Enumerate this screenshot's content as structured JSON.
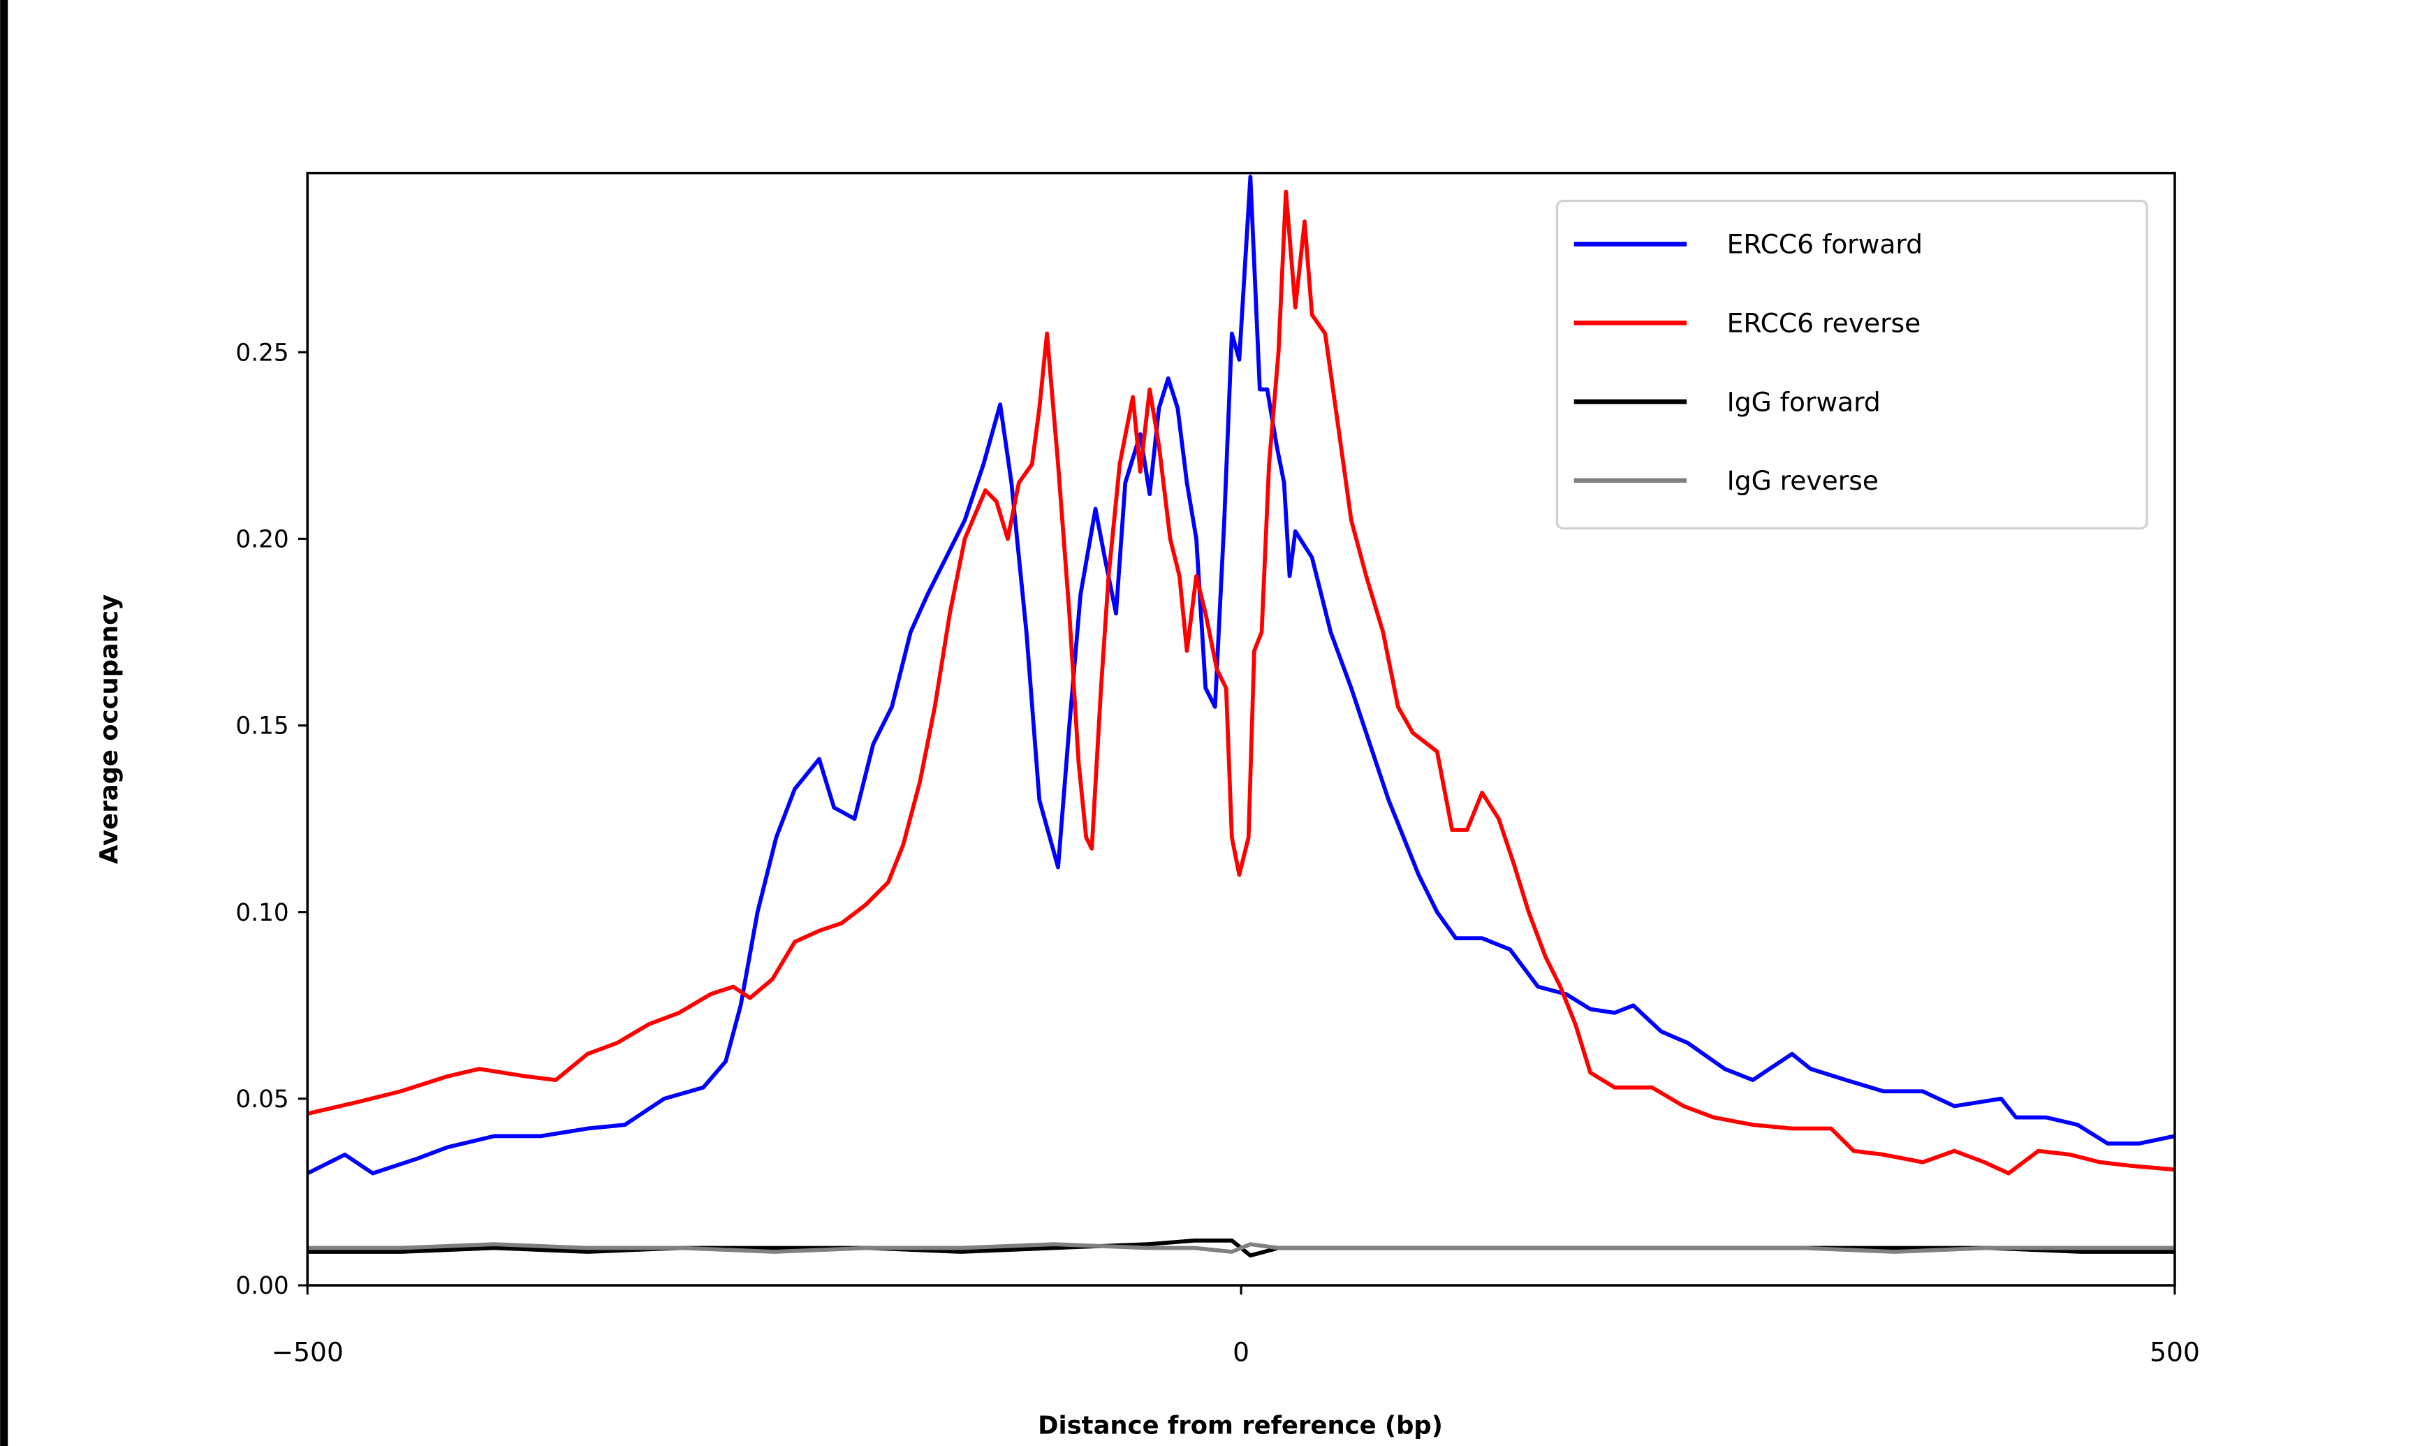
{
  "chart_data": {
    "type": "line",
    "title": "",
    "xlabel": "Distance from reference (bp)",
    "ylabel": "Average occupancy",
    "xlim": [
      -500,
      500
    ],
    "ylim": [
      0,
      0.298
    ],
    "xticks": [
      -500,
      0,
      500
    ],
    "xtick_labels": [
      "−500",
      "0",
      "500"
    ],
    "yticks": [
      0,
      0.05,
      0.1,
      0.15,
      0.2,
      0.25
    ],
    "ytick_labels": [
      "0.00",
      "0.05",
      "0.10",
      "0.15",
      "0.20",
      "0.25"
    ],
    "grid": false,
    "legend_position": "top-right",
    "series": [
      {
        "name": "ERCC6 forward",
        "color": "#0000ff",
        "x": [
          -500,
          -480,
          -465,
          -441,
          -425,
          -400,
          -375,
          -350,
          -330,
          -309,
          -288,
          -276,
          -268,
          -259,
          -249,
          -239,
          -226,
          -218,
          -207,
          -197,
          -187,
          -177,
          -168,
          -158,
          -148,
          -138,
          -129,
          -123,
          -115,
          -108,
          -98,
          -92,
          -86,
          -78,
          -73,
          -67,
          -62,
          -54,
          -49,
          -44,
          -39,
          -34,
          -29,
          -24,
          -19,
          -14,
          -9,
          -5,
          -1,
          5,
          10,
          14,
          19,
          23,
          26,
          29,
          38,
          48,
          59,
          69,
          79,
          95,
          105,
          115,
          129,
          144,
          159,
          174,
          187,
          200,
          210,
          225,
          239,
          259,
          274,
          295,
          305,
          324,
          344,
          365,
          382,
          407,
          415,
          431,
          448,
          464,
          481,
          500
        ],
        "y": [
          0.03,
          0.035,
          0.03,
          0.034,
          0.037,
          0.04,
          0.04,
          0.042,
          0.043,
          0.05,
          0.053,
          0.06,
          0.075,
          0.1,
          0.12,
          0.133,
          0.141,
          0.128,
          0.125,
          0.145,
          0.155,
          0.175,
          0.185,
          0.195,
          0.205,
          0.22,
          0.236,
          0.215,
          0.175,
          0.13,
          0.112,
          0.15,
          0.185,
          0.208,
          0.195,
          0.18,
          0.215,
          0.228,
          0.212,
          0.235,
          0.243,
          0.235,
          0.215,
          0.2,
          0.16,
          0.155,
          0.205,
          0.255,
          0.248,
          0.297,
          0.24,
          0.24,
          0.225,
          0.215,
          0.19,
          0.202,
          0.195,
          0.175,
          0.16,
          0.145,
          0.13,
          0.11,
          0.1,
          0.093,
          0.093,
          0.09,
          0.08,
          0.078,
          0.074,
          0.073,
          0.075,
          0.068,
          0.065,
          0.058,
          0.055,
          0.062,
          0.058,
          0.055,
          0.052,
          0.052,
          0.048,
          0.05,
          0.045,
          0.045,
          0.043,
          0.038,
          0.038,
          0.04
        ]
      },
      {
        "name": "ERCC6 reverse",
        "color": "#ff0000",
        "x": [
          -500,
          -474,
          -450,
          -425,
          -408,
          -383,
          -367,
          -350,
          -334,
          -317,
          -301,
          -284,
          -272,
          -263,
          -251,
          -239,
          -226,
          -214,
          -201,
          -189,
          -181,
          -172,
          -164,
          -156,
          -148,
          -137,
          -131,
          -125,
          -119,
          -112,
          -108,
          -104,
          -98,
          -92,
          -87,
          -83,
          -80,
          -75,
          -71,
          -65,
          -58,
          -54,
          -49,
          -44,
          -38,
          -33,
          -29,
          -24,
          -19,
          -13,
          -8,
          -5,
          -1,
          4,
          7,
          11,
          15,
          20,
          24,
          29,
          34,
          38,
          45,
          52,
          59,
          67,
          76,
          84,
          92,
          105,
          113,
          121,
          129,
          138,
          146,
          154,
          163,
          171,
          179,
          187,
          200,
          220,
          237,
          253,
          274,
          295,
          316,
          328,
          344,
          365,
          382,
          398,
          411,
          427,
          444,
          460,
          477,
          500
        ],
        "y": [
          0.046,
          0.049,
          0.052,
          0.056,
          0.058,
          0.056,
          0.055,
          0.062,
          0.065,
          0.07,
          0.073,
          0.078,
          0.08,
          0.077,
          0.082,
          0.092,
          0.095,
          0.097,
          0.102,
          0.108,
          0.118,
          0.135,
          0.155,
          0.18,
          0.2,
          0.213,
          0.21,
          0.2,
          0.215,
          0.22,
          0.235,
          0.255,
          0.22,
          0.18,
          0.14,
          0.12,
          0.117,
          0.16,
          0.19,
          0.22,
          0.238,
          0.218,
          0.24,
          0.225,
          0.2,
          0.19,
          0.17,
          0.19,
          0.18,
          0.165,
          0.16,
          0.12,
          0.11,
          0.12,
          0.17,
          0.175,
          0.22,
          0.25,
          0.293,
          0.262,
          0.285,
          0.26,
          0.255,
          0.23,
          0.205,
          0.19,
          0.175,
          0.155,
          0.148,
          0.143,
          0.122,
          0.122,
          0.132,
          0.125,
          0.113,
          0.1,
          0.088,
          0.08,
          0.07,
          0.057,
          0.053,
          0.053,
          0.048,
          0.045,
          0.043,
          0.042,
          0.042,
          0.036,
          0.035,
          0.033,
          0.036,
          0.033,
          0.03,
          0.036,
          0.035,
          0.033,
          0.032,
          0.031
        ]
      },
      {
        "name": "IgG forward",
        "color": "#000000",
        "x": [
          -500,
          -450,
          -400,
          -350,
          -300,
          -250,
          -200,
          -150,
          -100,
          -50,
          -25,
          -5,
          5,
          20,
          50,
          100,
          150,
          200,
          250,
          300,
          350,
          400,
          450,
          500
        ],
        "y": [
          0.009,
          0.009,
          0.01,
          0.009,
          0.01,
          0.01,
          0.01,
          0.009,
          0.01,
          0.011,
          0.012,
          0.012,
          0.008,
          0.01,
          0.01,
          0.01,
          0.01,
          0.01,
          0.01,
          0.01,
          0.01,
          0.01,
          0.009,
          0.009
        ]
      },
      {
        "name": "IgG reverse",
        "color": "#808080",
        "x": [
          -500,
          -450,
          -400,
          -350,
          -300,
          -250,
          -200,
          -150,
          -100,
          -50,
          -25,
          -5,
          5,
          20,
          50,
          100,
          150,
          200,
          250,
          300,
          350,
          400,
          450,
          500
        ],
        "y": [
          0.01,
          0.01,
          0.011,
          0.01,
          0.01,
          0.009,
          0.01,
          0.01,
          0.011,
          0.01,
          0.01,
          0.009,
          0.011,
          0.01,
          0.01,
          0.01,
          0.01,
          0.01,
          0.01,
          0.01,
          0.009,
          0.01,
          0.01,
          0.01
        ]
      }
    ]
  }
}
